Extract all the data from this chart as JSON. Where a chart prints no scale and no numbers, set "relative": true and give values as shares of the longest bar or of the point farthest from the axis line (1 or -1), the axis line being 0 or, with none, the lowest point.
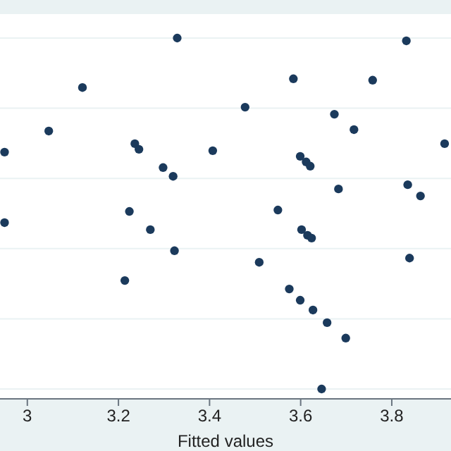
{
  "chart_data": {
    "type": "scatter",
    "xlabel": "Fitted values",
    "relative": true,
    "tick_labels": "x",
    "grid": "y",
    "marker": "circle",
    "xlim": [
      2.94,
      3.93
    ],
    "xticks": [
      3,
      3.2,
      3.4,
      3.6,
      3.8
    ],
    "x": [
      2.95,
      2.95,
      3.047,
      3.121,
      3.214,
      3.224,
      3.236,
      3.245,
      3.27,
      3.298,
      3.32,
      3.323,
      3.329,
      3.407,
      3.478,
      3.509,
      3.55,
      3.575,
      3.584,
      3.599,
      3.599,
      3.602,
      3.612,
      3.615,
      3.621,
      3.624,
      3.627,
      3.646,
      3.658,
      3.674,
      3.683,
      3.699,
      3.717,
      3.758,
      3.832,
      3.835,
      3.839,
      3.863,
      3.916
    ],
    "series": [
      {
        "color": "#1b3a5c",
        "values": [
          0.675,
          0.474,
          0.735,
          0.859,
          0.309,
          0.506,
          0.699,
          0.683,
          0.454,
          0.631,
          0.606,
          0.394,
          1.0,
          0.679,
          0.803,
          0.361,
          0.51,
          0.285,
          0.884,
          0.663,
          0.253,
          0.454,
          0.647,
          0.438,
          0.635,
          0.43,
          0.225,
          0,
          0.189,
          0.783,
          0.57,
          0.145,
          0.739,
          0.88,
          0.992,
          0.582,
          0.373,
          0.55,
          0.699
        ]
      }
    ]
  }
}
